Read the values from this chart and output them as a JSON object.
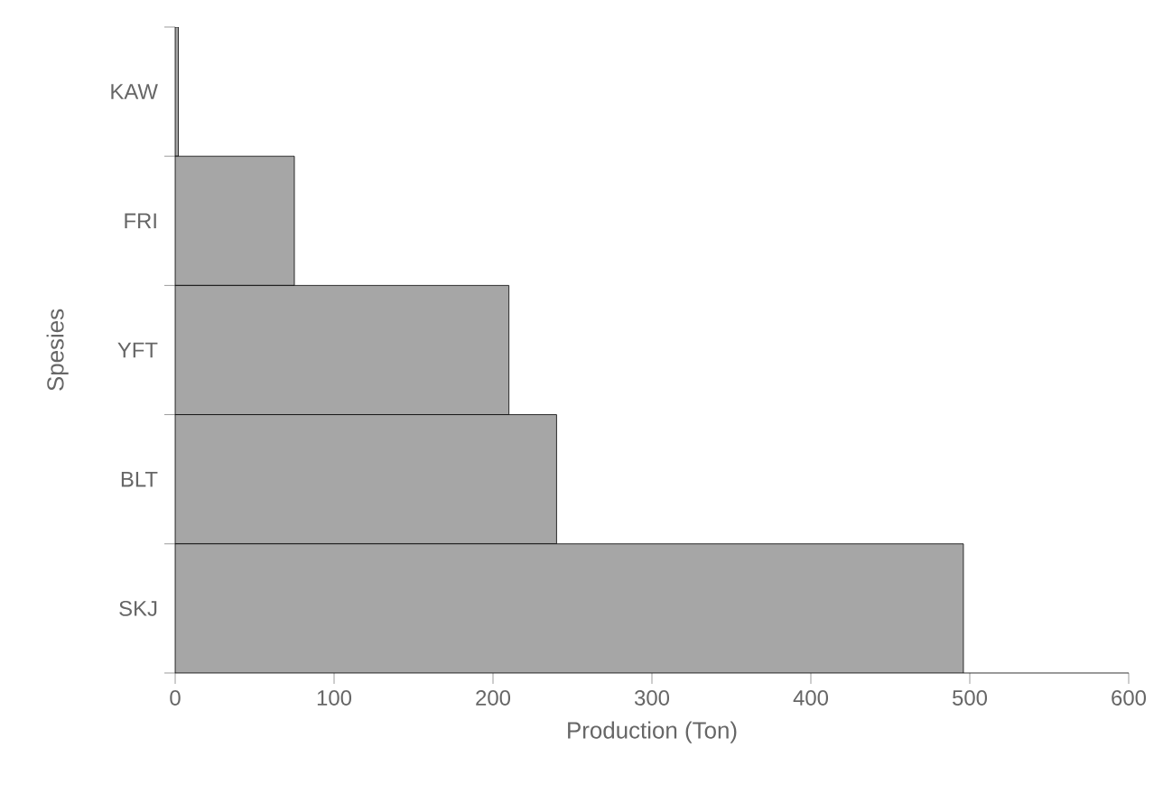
{
  "chart_data": {
    "type": "bar",
    "orientation": "horizontal",
    "xlabel": "Production (Ton)",
    "ylabel": "Spesies",
    "categories": [
      "KAW",
      "FRI",
      "YFT",
      "BLT",
      "SKJ"
    ],
    "values": [
      2,
      75,
      210,
      240,
      496
    ],
    "color": "#a6a6a6",
    "xlim": [
      0,
      600
    ],
    "xticks": [
      0,
      100,
      200,
      300,
      400,
      500,
      600
    ],
    "grid": false
  }
}
